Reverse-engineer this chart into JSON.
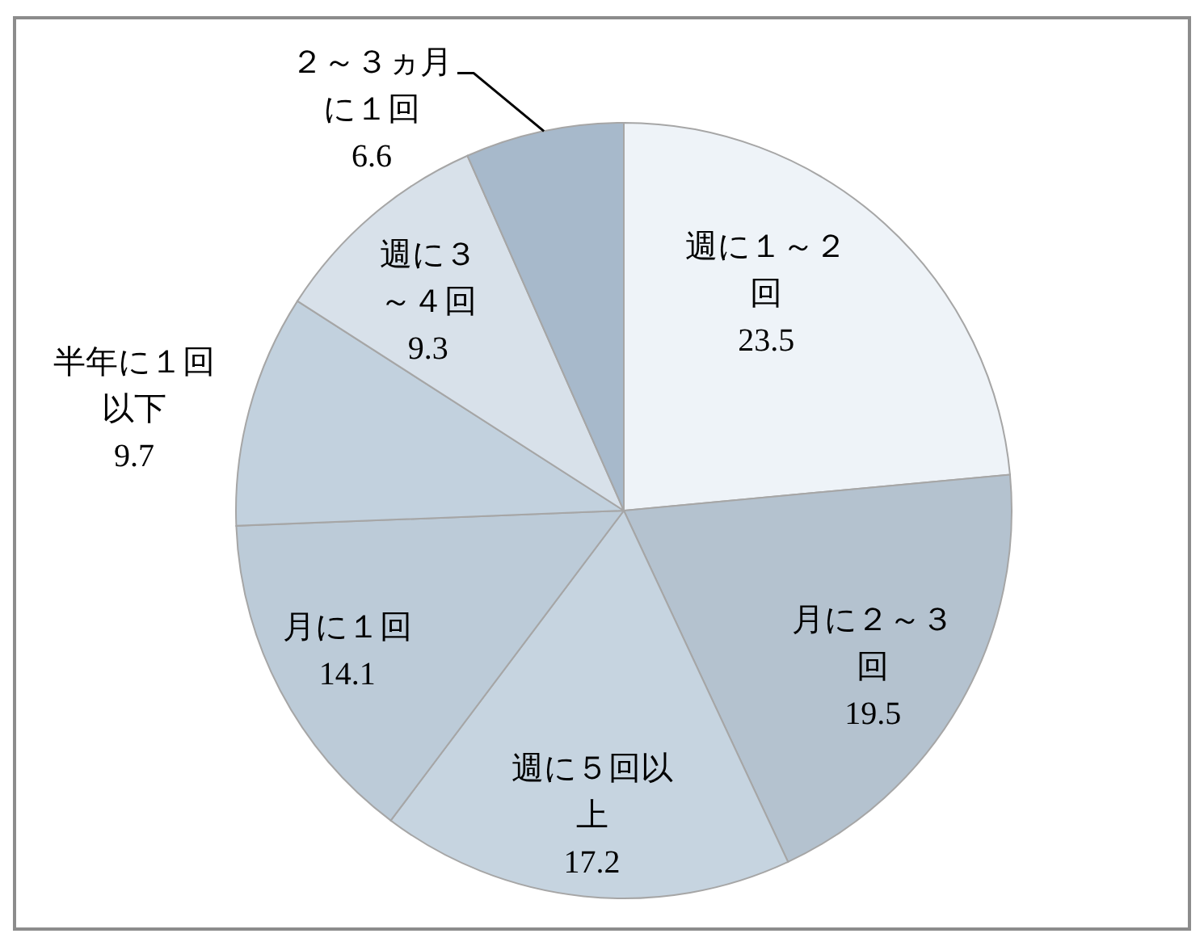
{
  "chart_data": {
    "type": "pie",
    "categories": [
      "週に１～２回",
      "月に２～３回",
      "週に５回以上",
      "月に１回",
      "半年に１回以下",
      "週に３～４回",
      "２～３ヵ月に１回"
    ],
    "values": [
      23.5,
      19.5,
      17.2,
      14.1,
      9.7,
      9.3,
      6.6
    ],
    "colors": [
      "#eef3f8",
      "#b4c2cf",
      "#c6d4e0",
      "#bccbd8",
      "#c2d1de",
      "#d8e1ea",
      "#a7b9cb"
    ],
    "data_labels": true
  }
}
